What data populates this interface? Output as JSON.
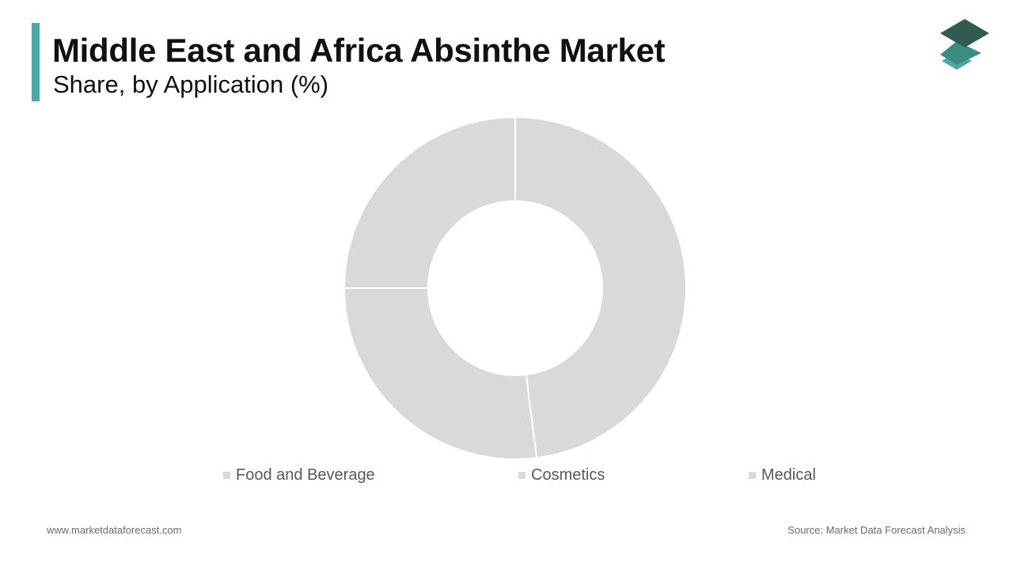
{
  "header": {
    "title": "Middle East and Africa Absinthe Market",
    "subtitle": "Share, by Application (%)"
  },
  "colors": {
    "accent": "#4aa9a8",
    "slice": "#d9d9d9",
    "slice_border": "#ffffff",
    "logo_top": "#2f5b53",
    "logo_mid": "#3d8c7f",
    "logo_bottom": "#4aa9a8"
  },
  "logo_icon": "stacked-layers-icon",
  "chart_data": {
    "type": "pie",
    "donut": true,
    "categories": [
      "Food and Beverage",
      "Cosmetics",
      "Medical"
    ],
    "values": [
      48,
      27,
      25
    ],
    "start": "top",
    "direction": "clockwise",
    "legend_position": "bottom"
  },
  "footer": {
    "website": "www.marketdataforecast.com",
    "source": "Source: Market Data Forecast Analysis"
  }
}
